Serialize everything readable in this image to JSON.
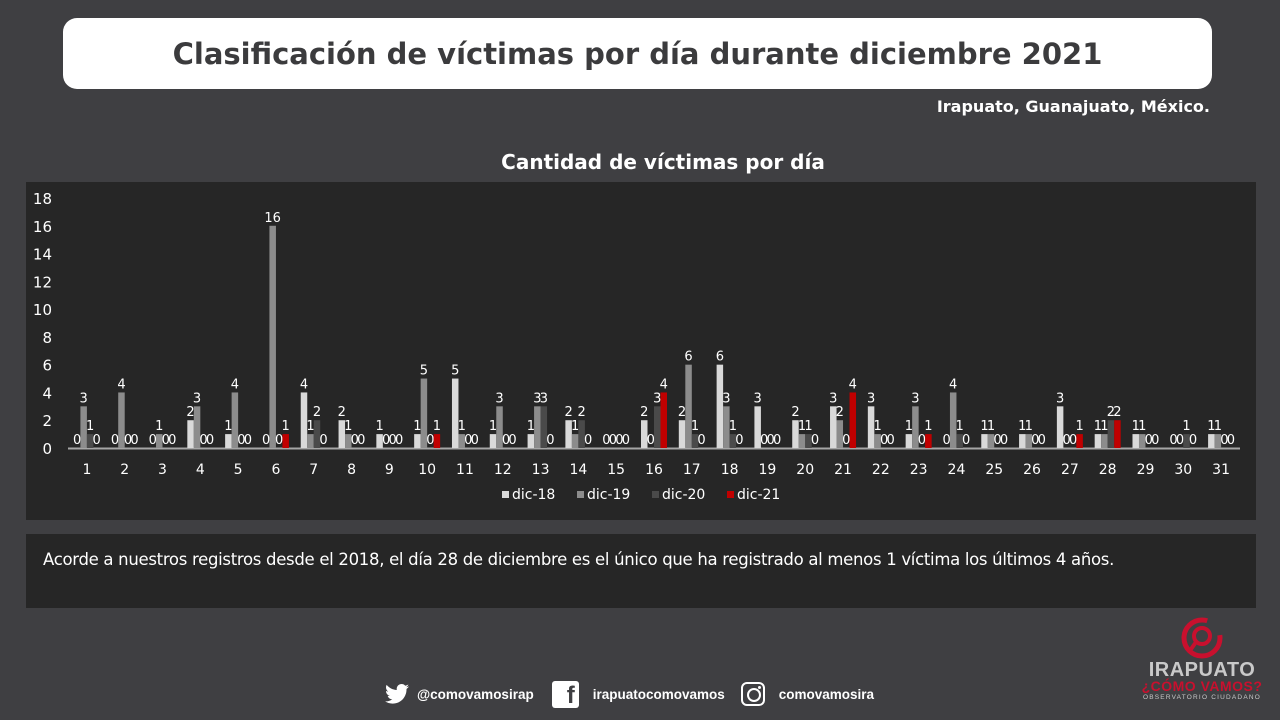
{
  "header": {
    "title": "Clasificación de víctimas por día durante diciembre 2021",
    "location": "Irapuato, Guanajuato, México."
  },
  "note": "Acorde a nuestros registros desde el 2018, el día 28 de diciembre es el único que ha registrado al menos 1 víctima los últimos 4 años.",
  "footer": {
    "twitter_icon": "twitter-icon",
    "twitter": "@comovamosirap",
    "facebook_icon": "facebook-icon",
    "facebook_glyph": "f",
    "facebook": "irapuatocomovamos",
    "instagram_icon": "instagram-icon",
    "instagram": "comovamosira"
  },
  "logo": {
    "line1": "IRAPUATO",
    "line2": "¿CÓMO VAMOS?",
    "line3": "OBSERVATORIO CIUDADANO",
    "color": "#c8102e"
  },
  "chart_data": {
    "type": "bar",
    "title": "Cantidad de víctimas por día",
    "xlabel": "",
    "ylabel": "",
    "ylim": [
      0,
      18
    ],
    "yticks": [
      0,
      2,
      4,
      6,
      8,
      10,
      12,
      14,
      16,
      18
    ],
    "grid": false,
    "legend_position": "bottom",
    "categories": [
      "1",
      "2",
      "3",
      "4",
      "5",
      "6",
      "7",
      "8",
      "9",
      "10",
      "11",
      "12",
      "13",
      "14",
      "15",
      "16",
      "17",
      "18",
      "19",
      "20",
      "21",
      "22",
      "23",
      "24",
      "25",
      "26",
      "27",
      "28",
      "29",
      "30",
      "31"
    ],
    "series": [
      {
        "name": "dic-18",
        "color": "#d9d9d9",
        "values": [
          0,
          0,
          0,
          2,
          1,
          0,
          4,
          2,
          1,
          1,
          5,
          1,
          1,
          2,
          0,
          2,
          2,
          6,
          3,
          2,
          3,
          3,
          1,
          0,
          1,
          1,
          3,
          1,
          1,
          0,
          1
        ]
      },
      {
        "name": "dic-19",
        "color": "#8c8c8c",
        "values": [
          3,
          4,
          1,
          3,
          4,
          16,
          1,
          1,
          0,
          5,
          1,
          3,
          3,
          1,
          0,
          0,
          6,
          3,
          0,
          1,
          2,
          1,
          3,
          4,
          1,
          1,
          0,
          1,
          1,
          0,
          1
        ]
      },
      {
        "name": "dic-20",
        "color": "#4a4a4a",
        "values": [
          1,
          0,
          0,
          0,
          0,
          0,
          2,
          0,
          0,
          0,
          0,
          0,
          3,
          2,
          0,
          3,
          1,
          1,
          0,
          1,
          0,
          0,
          0,
          1,
          0,
          0,
          0,
          2,
          0,
          1,
          0
        ]
      },
      {
        "name": "dic-21",
        "color": "#c00000",
        "values": [
          0,
          0,
          0,
          0,
          0,
          1,
          0,
          0,
          0,
          1,
          0,
          0,
          0,
          0,
          0,
          4,
          0,
          0,
          0,
          0,
          4,
          0,
          1,
          0,
          0,
          0,
          1,
          2,
          0,
          0,
          0
        ]
      }
    ]
  }
}
